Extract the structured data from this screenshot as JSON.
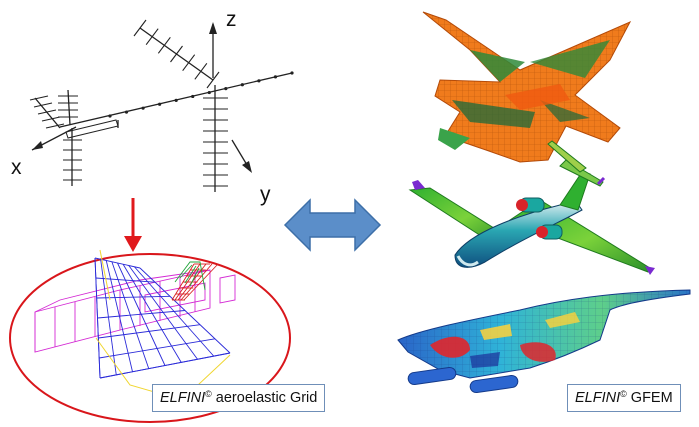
{
  "axes": {
    "x": "x",
    "y": "y",
    "z": "z"
  },
  "captions": {
    "left": {
      "brand": "ELFINI",
      "mark": "©",
      "text": " aeroelastic Grid"
    },
    "right": {
      "brand": "ELFINI",
      "mark": "©",
      "text": " GFEM"
    }
  },
  "colors": {
    "red_arrow": "#e0191c",
    "double_arrow": "#5b8ec9",
    "ellipse": "#d9161b"
  }
}
